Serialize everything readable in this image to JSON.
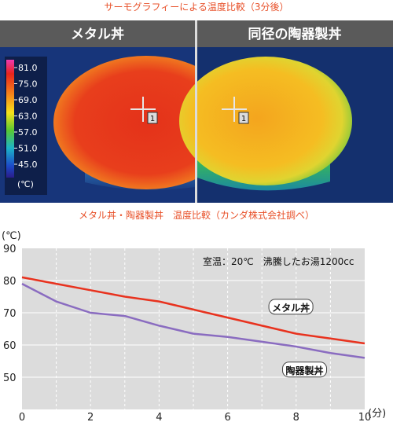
{
  "captions": {
    "thermo": "サーモグラフィーによる温度比較（3分後）",
    "chart": "メタル丼・陶器製丼　温度比較（カンダ株式会社調べ）"
  },
  "thermo": {
    "left_title": "メタル丼",
    "right_title": "同径の陶器製丼",
    "scale_labels": [
      "81.0",
      "75.0",
      "69.0",
      "63.0",
      "57.0",
      "51.0",
      "45.0"
    ],
    "scale_unit": "(℃)",
    "cursor_marker": "1",
    "colors": {
      "metal": "#e83a1c",
      "ceramic": "#f2b320",
      "background": "#18306a"
    }
  },
  "chart_data": {
    "type": "line",
    "ylabel": "(℃)",
    "xlabel": "(分)",
    "xlim": [
      0,
      10
    ],
    "ylim": [
      40,
      90
    ],
    "x_ticks": [
      "0",
      "2",
      "4",
      "6",
      "8",
      "10"
    ],
    "y_ticks": [
      "90",
      "80",
      "70",
      "60",
      "50"
    ],
    "note": "室温：20℃　沸騰したお湯1200cc",
    "grid": true,
    "series": [
      {
        "name": "メタル丼",
        "color": "#e8321e",
        "x": [
          0,
          1,
          2,
          3,
          4,
          5,
          6,
          7,
          8,
          9,
          10
        ],
        "y": [
          81,
          79,
          77,
          75,
          73.5,
          71,
          68.5,
          66,
          63.5,
          62,
          60.5
        ]
      },
      {
        "name": "陶器製丼",
        "color": "#8a6cc0",
        "x": [
          0,
          1,
          2,
          3,
          4,
          5,
          6,
          7,
          8,
          9,
          10
        ],
        "y": [
          79,
          73.5,
          70,
          69,
          66,
          63.5,
          62.5,
          61,
          59.5,
          57.5,
          56
        ]
      }
    ]
  }
}
